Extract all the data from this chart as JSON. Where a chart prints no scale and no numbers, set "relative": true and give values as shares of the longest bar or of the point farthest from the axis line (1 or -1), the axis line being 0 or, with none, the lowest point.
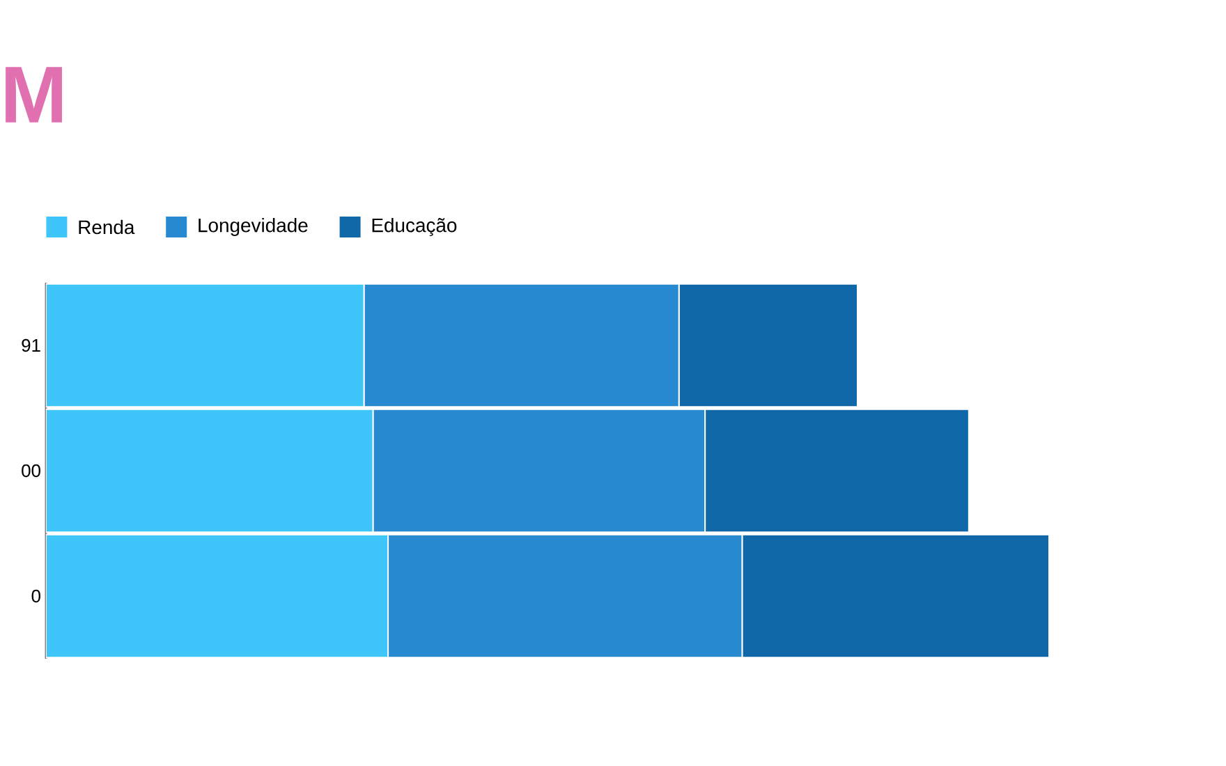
{
  "chart_data": {
    "type": "bar",
    "title": "M",
    "orientation": "horizontal",
    "stacked": true,
    "relative": true,
    "legend": "top left",
    "categories": [
      "91",
      "00",
      "0"
    ],
    "series": [
      {
        "name": "Renda",
        "color": "#3ec6fb",
        "values": [
          0.317,
          0.326,
          0.341
        ]
      },
      {
        "name": "Longevidade",
        "color": "#2789cf",
        "values": [
          0.314,
          0.331,
          0.353
        ]
      },
      {
        "name": "Educação",
        "color": "#1168a8",
        "values": [
          0.178,
          0.263,
          0.306
        ]
      }
    ]
  }
}
